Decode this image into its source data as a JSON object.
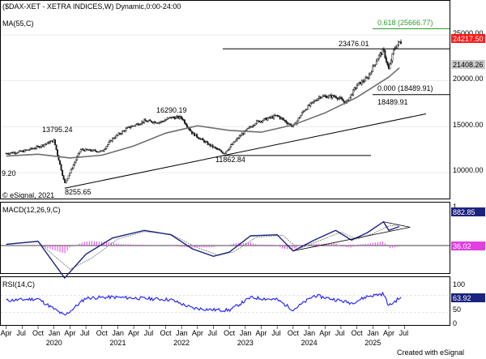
{
  "colors": {
    "candle": "#1a1a1a",
    "ma55": "#6e6e6e",
    "macd_line": "#1a237e",
    "macd_signal": "#8a8a8a",
    "macd_hist": "#e040e0",
    "rsi_line": "#1a1aff",
    "level_line": "#000000",
    "fib_line": "#2e9e2e",
    "fib_text": "#2e9e2e",
    "price_tag_bg": "#ff1a1a",
    "macd_tag_bg": "#1a237e",
    "rsi_tag_bg": "#1a237e",
    "hist_tag_bg": "#e040e0",
    "ma_tag_bg": "#cccccc",
    "plain_tag_bg": "#eeeeee",
    "panel_border": "#000000",
    "grid": "#d8d8d8"
  },
  "header": {
    "title": "($DAX-XET - XETRA INDICES,W) Dynamic,0:00-24:00",
    "ma_label": "MA(55,C)",
    "macd_label": "MACD(12,26,9,C)",
    "rsi_label": "RSI(14,C)",
    "watermark": "© eSignal, 2021",
    "footer": "Created with eSignal"
  },
  "annotations": {
    "fib_618": "0.618 (25666.77)",
    "fib_000": "0.000 (18489.91)",
    "high_2025": "23476.01",
    "low_2024": "18489.91",
    "high_2021": "16290.19",
    "low_2022": "11862.84",
    "high_2020": "13795.24",
    "low_2020": "8255.65",
    "left_edge": "9.20"
  },
  "price_tags": {
    "last_price": "24217.50",
    "ma_value": "21408.26",
    "macd_value": "882.85",
    "hist_value": "36.02",
    "rsi_value": "63.92",
    "macd_top_tick": "1",
    "rsi_tick_100": "100",
    "rsi_tick_50": "50",
    "rsi_tick_0": "0"
  },
  "chart_data": [
    {
      "type": "candlestick",
      "title": "($DAX-XET - XETRA INDICES,W) Dynamic,0:00-24:00",
      "x_ticks": [
        "Apr",
        "Jul",
        "Oct",
        "Jan",
        "Apr",
        "Jul",
        "Oct",
        "Jan",
        "Apr",
        "Jul",
        "Oct",
        "Jan",
        "Apr",
        "Jul",
        "Oct",
        "Jan",
        "Apr",
        "Jul",
        "Oct",
        "Jan",
        "Apr",
        "Jul",
        "Oct",
        "Jan",
        "Apr",
        "Jul"
      ],
      "year_labels": [
        "2020",
        "2021",
        "2022",
        "2023",
        "2024",
        "2025"
      ],
      "y_ticks": [
        "25000.00",
        "20000.00",
        "15000.00",
        "10000.00"
      ],
      "ylim": [
        7000,
        26000
      ],
      "series": [
        {
          "name": "$DAX-XET",
          "x": [
            "2019-04",
            "2019-07",
            "2019-10",
            "2020-01",
            "2020-03",
            "2020-06",
            "2020-10",
            "2020-12",
            "2021-03",
            "2021-06",
            "2021-09",
            "2021-11",
            "2022-01",
            "2022-03",
            "2022-06",
            "2022-09",
            "2022-12",
            "2023-03",
            "2023-07",
            "2023-10",
            "2023-12",
            "2024-03",
            "2024-06",
            "2024-08",
            "2024-10",
            "2024-12",
            "2025-02",
            "2025-03",
            "2025-04",
            "2025-05",
            "2025-06"
          ],
          "y": [
            12100,
            12300,
            12800,
            13500,
            8800,
            12500,
            12300,
            13700,
            14900,
            15600,
            15500,
            16000,
            16000,
            14300,
            13100,
            12100,
            14000,
            15500,
            16200,
            15000,
            16750,
            18300,
            18300,
            17600,
            19500,
            20300,
            22600,
            23300,
            21200,
            23500,
            24200
          ]
        },
        {
          "name": "MA(55,C)",
          "x": [
            "2019-04",
            "2019-10",
            "2020-04",
            "2020-10",
            "2021-04",
            "2021-10",
            "2022-04",
            "2022-10",
            "2023-04",
            "2023-10",
            "2024-04",
            "2024-10",
            "2025-04",
            "2025-06"
          ],
          "y": [
            11800,
            12000,
            11600,
            11900,
            12900,
            14300,
            15100,
            14600,
            14400,
            15200,
            16500,
            18200,
            20400,
            21408
          ]
        }
      ],
      "levels": [
        {
          "label": "0.618 (25666.77)",
          "value": 25666.77
        },
        {
          "label": "23476.01",
          "value": 23476.01
        },
        {
          "label": "0.000 (18489.91)",
          "value": 18489.91
        },
        {
          "label": "11862.84",
          "value": 11862.84
        }
      ]
    },
    {
      "type": "line",
      "title": "MACD(12,26,9,C)",
      "series": [
        {
          "name": "MACD",
          "x": [
            "2019-04",
            "2019-10",
            "2020-03",
            "2020-07",
            "2020-12",
            "2021-06",
            "2021-11",
            "2022-03",
            "2022-07",
            "2022-10",
            "2023-02",
            "2023-07",
            "2023-10",
            "2024-02",
            "2024-06",
            "2024-09",
            "2024-12",
            "2025-03",
            "2025-04",
            "2025-06"
          ],
          "y": [
            60,
            200,
            -1500,
            -400,
            350,
            700,
            500,
            -150,
            -500,
            -300,
            450,
            500,
            -250,
            250,
            700,
            250,
            600,
            1100,
            700,
            883
          ]
        },
        {
          "name": "Signal",
          "x": [
            "2019-04",
            "2019-10",
            "2020-04",
            "2020-08",
            "2021-01",
            "2021-06",
            "2021-11",
            "2022-04",
            "2022-08",
            "2022-11",
            "2023-03",
            "2023-08",
            "2023-11",
            "2024-03",
            "2024-07",
            "2024-10",
            "2025-01",
            "2025-04",
            "2025-06"
          ],
          "y": [
            50,
            180,
            -1100,
            -600,
            300,
            650,
            520,
            -100,
            -450,
            -280,
            380,
            480,
            -150,
            230,
            620,
            300,
            550,
            900,
            950
          ]
        },
        {
          "name": "Histogram",
          "x": [
            "2020-03",
            "2020-05",
            "2021-01",
            "2022-03",
            "2023-01",
            "2024-02",
            "2025-03",
            "2025-06"
          ],
          "y": [
            -300,
            180,
            80,
            -60,
            100,
            60,
            120,
            36
          ]
        }
      ]
    },
    {
      "type": "line",
      "title": "RSI(14,C)",
      "y_ticks": [
        "100",
        "50",
        "0"
      ],
      "ylim": [
        0,
        100
      ],
      "series": [
        {
          "name": "RSI",
          "x": [
            "2019-04",
            "2019-10",
            "2020-03",
            "2020-07",
            "2020-12",
            "2021-06",
            "2021-11",
            "2022-03",
            "2022-07",
            "2022-10",
            "2023-02",
            "2023-07",
            "2023-10",
            "2024-02",
            "2024-06",
            "2024-09",
            "2024-12",
            "2025-03",
            "2025-04",
            "2025-06"
          ],
          "y": [
            58,
            62,
            22,
            64,
            66,
            63,
            60,
            40,
            36,
            35,
            65,
            60,
            36,
            70,
            60,
            52,
            68,
            74,
            45,
            63.92
          ]
        }
      ]
    }
  ]
}
